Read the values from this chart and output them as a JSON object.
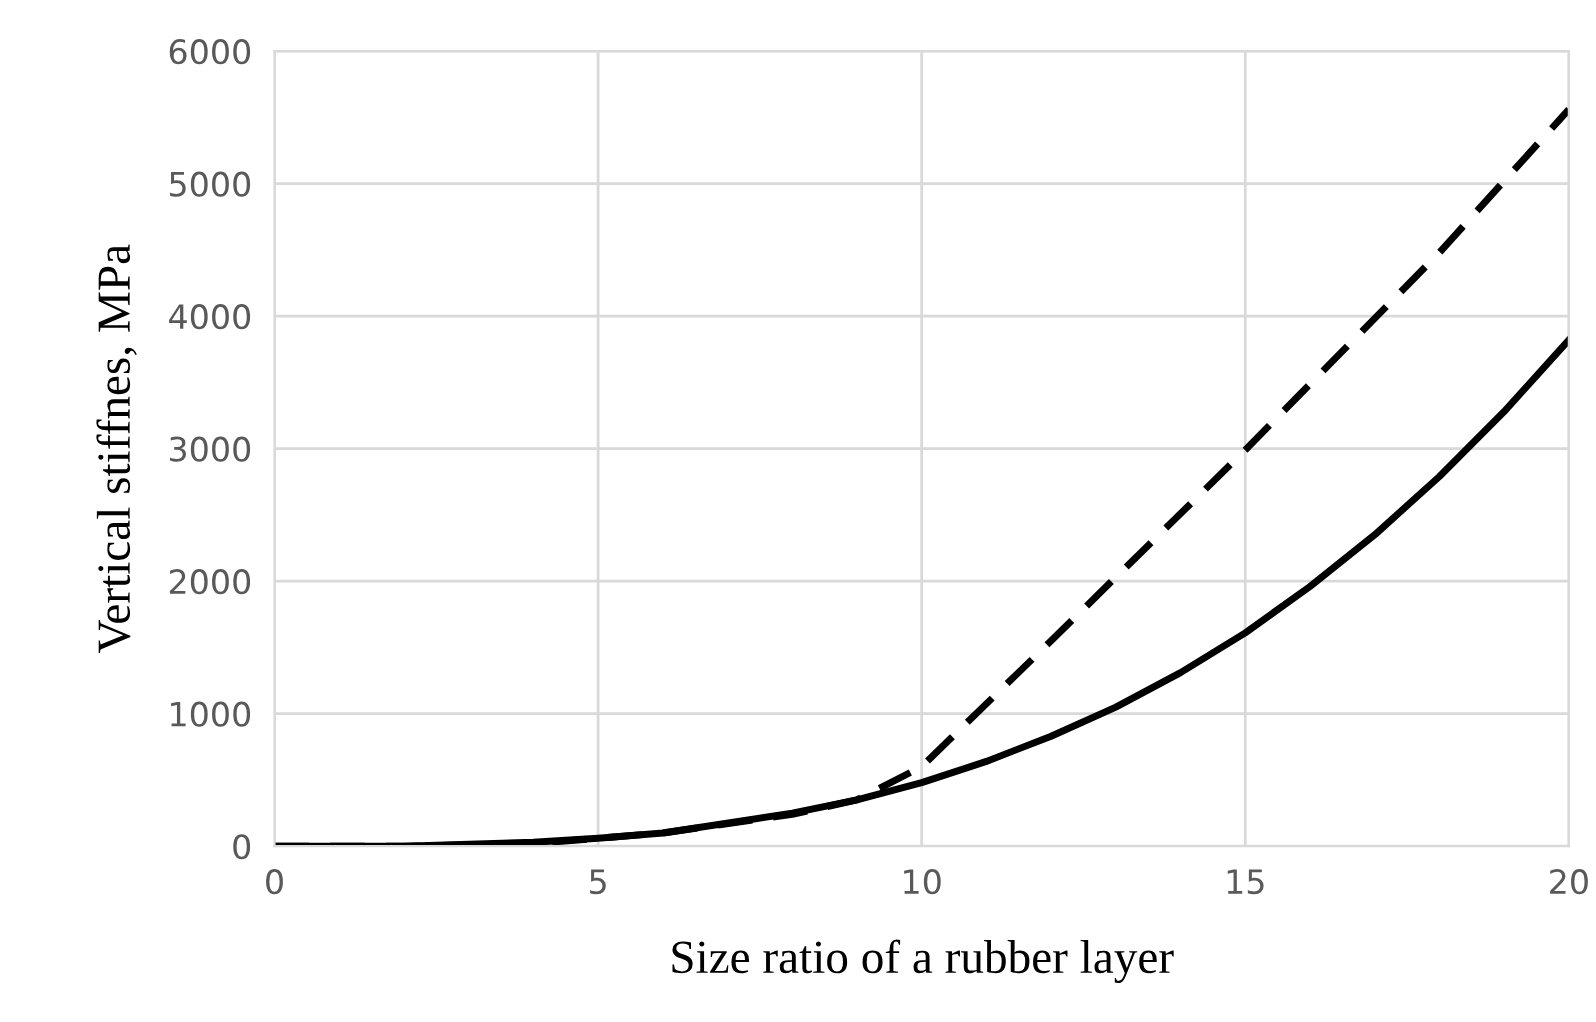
{
  "chart_data": {
    "type": "line",
    "xlabel": "Size ratio of a rubber layer",
    "ylabel": "Vertical stiffnes, MPa",
    "xlim": [
      0,
      20
    ],
    "xticks": [
      0,
      5,
      10,
      15,
      20
    ],
    "ylim": [
      0,
      6000
    ],
    "yticks": [
      0,
      1000,
      2000,
      3000,
      4000,
      5000,
      6000
    ],
    "grid": true,
    "legend": false,
    "marker": "none",
    "series": [
      {
        "color": "#000000",
        "line_style": "solid",
        "x": [
          0,
          2,
          4,
          5,
          6,
          8,
          9,
          10,
          11,
          12,
          13,
          14,
          15,
          16,
          17,
          18,
          19,
          20
        ],
        "values": [
          0,
          0,
          30,
          60,
          100,
          250,
          350,
          480,
          640,
          830,
          1050,
          1310,
          1610,
          1960,
          2350,
          2790,
          3280,
          3820
        ]
      },
      {
        "color": "#000000",
        "line_style": "dashed",
        "x": [
          0,
          2,
          4,
          5,
          6,
          8,
          9,
          10,
          12,
          15,
          18,
          20
        ],
        "values": [
          0,
          0,
          20,
          60,
          100,
          240,
          350,
          600,
          1550,
          2990,
          4480,
          5560
        ]
      }
    ]
  }
}
